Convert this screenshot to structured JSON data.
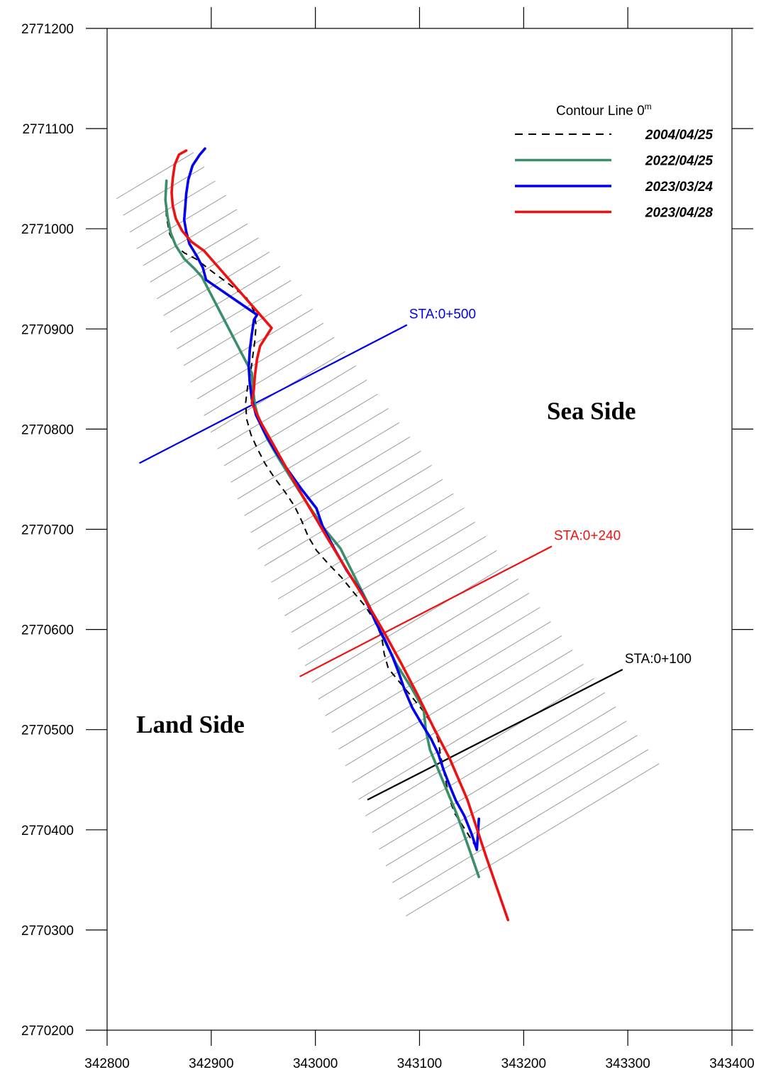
{
  "chart_data": {
    "type": "line",
    "title": "",
    "xlabel": "",
    "ylabel": "",
    "xlim": [
      342800,
      343400
    ],
    "ylim": [
      2770200,
      2771200
    ],
    "x_ticks": [
      342800,
      342900,
      343000,
      343100,
      343200,
      343300,
      343400
    ],
    "x_tick_labels": [
      "342800",
      "342900",
      "343000",
      "343100",
      "343200",
      "343300",
      "343400"
    ],
    "y_ticks": [
      2770200,
      2770300,
      2770400,
      2770500,
      2770600,
      2770700,
      2770800,
      2770900,
      2771000,
      2771100,
      2771200
    ],
    "y_tick_labels": [
      "2770200",
      "2770300",
      "2770400",
      "2770500",
      "2770600",
      "2770700",
      "2770800",
      "2770900",
      "2771000",
      "2771100",
      "2771200"
    ],
    "grid": false,
    "legend": {
      "title": "Contour Line 0",
      "title_superscript": "m",
      "position": "top-right"
    },
    "series": [
      {
        "name": "2004/04/25",
        "color": "#000000",
        "style": "dashed",
        "x": [
          342856,
          342857,
          342860,
          342866,
          342874,
          342885,
          342900,
          342918,
          342934,
          342941,
          342943,
          342942,
          342940,
          342938,
          342935,
          342933,
          342934,
          342938,
          342944,
          342952,
          342961,
          342971,
          342980,
          342987,
          342993,
          343001,
          343012,
          343025,
          343036,
          343048,
          343058,
          343064,
          343066,
          343070,
          343082,
          343094,
          343104,
          343112,
          343118,
          343120,
          343123,
          343126,
          343129,
          343134,
          343144,
          343156
        ],
        "y": [
          2771030,
          2771012,
          2770995,
          2770983,
          2770976,
          2770970,
          2770958,
          2770944,
          2770931,
          2770918,
          2770904,
          2770889,
          2770874,
          2770858,
          2770843,
          2770826,
          2770810,
          2770795,
          2770781,
          2770765,
          2770751,
          2770737,
          2770723,
          2770708,
          2770693,
          2770679,
          2770666,
          2770652,
          2770638,
          2770623,
          2770607,
          2770591,
          2770576,
          2770561,
          2770546,
          2770531,
          2770518,
          2770505,
          2770490,
          2770475,
          2770460,
          2770445,
          2770430,
          2770416,
          2770400,
          2770380
        ]
      },
      {
        "name": "2022/04/25",
        "color": "#3a8f6a",
        "style": "solid",
        "x": [
          342857,
          342856,
          342858,
          342861,
          342866,
          342874,
          342884,
          342891,
          342939,
          342940,
          342942,
          342946,
          342954,
          342964,
          342976,
          342992,
          343009,
          343024,
          343038,
          343052,
          343064,
          343078,
          343092,
          343104,
          343106,
          343110,
          343118,
          343126,
          343136,
          343146,
          343157
        ],
        "y": [
          2771048,
          2771029,
          2771012,
          2770996,
          2770983,
          2770970,
          2770960,
          2770952,
          2770856,
          2770840,
          2770824,
          2770808,
          2770790,
          2770772,
          2770752,
          2770726,
          2770700,
          2770681,
          2770652,
          2770623,
          2770594,
          2770565,
          2770542,
          2770520,
          2770500,
          2770480,
          2770460,
          2770440,
          2770415,
          2770386,
          2770353
        ]
      },
      {
        "name": "2023/03/24",
        "color": "#0000ee",
        "style": "solid",
        "x": [
          342894,
          342889,
          342882,
          342878,
          342876,
          342875,
          342874,
          342876,
          342879,
          342886,
          342892,
          342895,
          342944,
          342941,
          342939,
          342937,
          342936,
          342937,
          342939,
          342943,
          342951,
          342961,
          342973,
          342986,
          343001,
          343007,
          343018,
          343030,
          343043,
          343051,
          343058,
          343067,
          343074,
          343080,
          343086,
          343093,
          343102,
          343111,
          343118,
          343123,
          343129,
          343135,
          343143,
          343150,
          343155,
          343157
        ],
        "y": [
          2771080,
          2771074,
          2771063,
          2771049,
          2771035,
          2771021,
          2771009,
          2770997,
          2770985,
          2770973,
          2770961,
          2770949,
          2770914,
          2770909,
          2770895,
          2770879,
          2770862,
          2770846,
          2770830,
          2770814,
          2770797,
          2770779,
          2770760,
          2770741,
          2770721,
          2770703,
          2770681,
          2770659,
          2770639,
          2770623,
          2770607,
          2770589,
          2770573,
          2770557,
          2770539,
          2770522,
          2770506,
          2770491,
          2770476,
          2770460,
          2770444,
          2770429,
          2770414,
          2770396,
          2770380,
          2770411
        ]
      },
      {
        "name": "2023/04/28",
        "color": "#ee1111",
        "style": "solid",
        "x": [
          342876,
          342869,
          342865,
          342863,
          342862,
          342863,
          342866,
          342872,
          342881,
          342893,
          342958,
          342947,
          342944,
          342942,
          342941,
          342939,
          342948,
          342961,
          342976,
          342993,
          343010,
          343028,
          343047,
          343065,
          343082,
          343098,
          343113,
          343129,
          343146,
          343164,
          343185
        ],
        "y": [
          2771078,
          2771074,
          2771064,
          2771050,
          2771036,
          2771023,
          2771010,
          2770998,
          2770987,
          2770978,
          2770901,
          2770883,
          2770870,
          2770854,
          2770840,
          2770826,
          2770806,
          2770782,
          2770754,
          2770724,
          2770694,
          2770663,
          2770631,
          2770599,
          2770567,
          2770535,
          2770503,
          2770471,
          2770430,
          2770373,
          2770310
        ]
      }
    ],
    "transects": {
      "count": 44,
      "start_x0": 342809,
      "start_y0": 2771030,
      "start_x1": 342883,
      "start_y1": 2771076,
      "end_x0": 343087,
      "end_y0": 2770314,
      "end_x1": 343330,
      "end_y1": 2770466,
      "color": "#9a9a9a"
    },
    "stations": [
      {
        "label": "STA:0+500",
        "color": "#0000ee",
        "x0": 342831,
        "y0": 2770766,
        "x1": 343088,
        "y1": 2770904
      },
      {
        "label": "STA:0+240",
        "color": "#ee1111",
        "x0": 342985,
        "y0": 2770553,
        "x1": 343227,
        "y1": 2770683
      },
      {
        "label": "STA:0+100",
        "color": "#000000",
        "x0": 343050,
        "y0": 2770430,
        "x1": 343295,
        "y1": 2770560
      }
    ],
    "annotations": [
      {
        "text": "Sea Side",
        "x": 343265,
        "y": 2770810
      },
      {
        "text": "Land Side",
        "x": 342880,
        "y": 2770497
      }
    ]
  }
}
